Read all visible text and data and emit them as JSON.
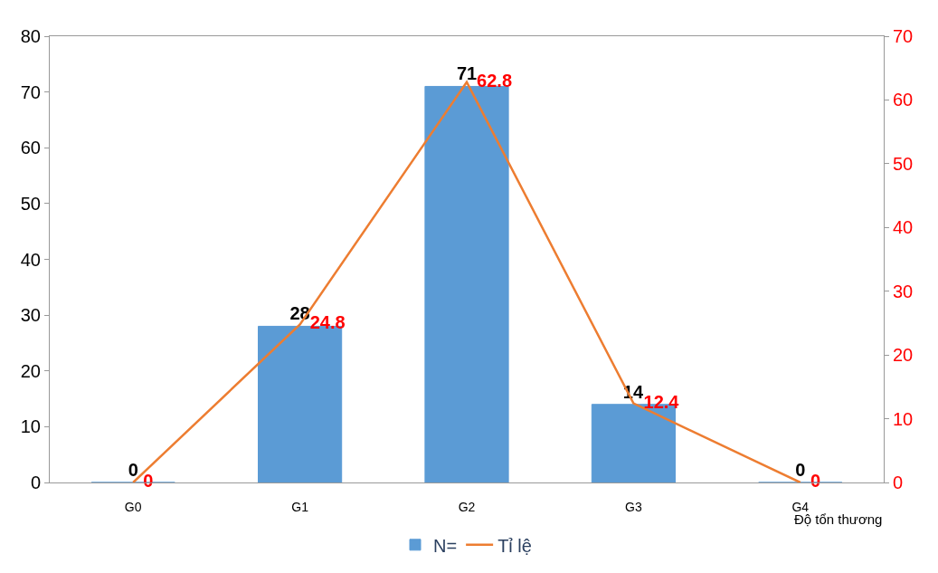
{
  "chart_data": {
    "type": "bar",
    "xlabel": "Độ tổn thương",
    "categories": [
      "G0",
      "G1",
      "G2",
      "G3",
      "G4"
    ],
    "series": [
      {
        "name": "N=",
        "color": "#5b9bd5",
        "values": [
          0,
          28,
          71,
          14,
          0
        ]
      },
      {
        "name": "Tỉ lệ",
        "type": "line",
        "axis": "y2",
        "color": "#ed7d31",
        "values": [
          0,
          24.8,
          62.8,
          12.4,
          0
        ]
      }
    ],
    "ylim": [
      0,
      80
    ],
    "yticks": [
      0,
      10,
      20,
      30,
      40,
      50,
      60,
      70,
      80
    ],
    "y2lim": [
      0,
      70
    ],
    "y2ticks": [
      0,
      10,
      20,
      30,
      40,
      50,
      60,
      70
    ],
    "data_labels": true,
    "legend": "bottom",
    "marker": "none"
  }
}
